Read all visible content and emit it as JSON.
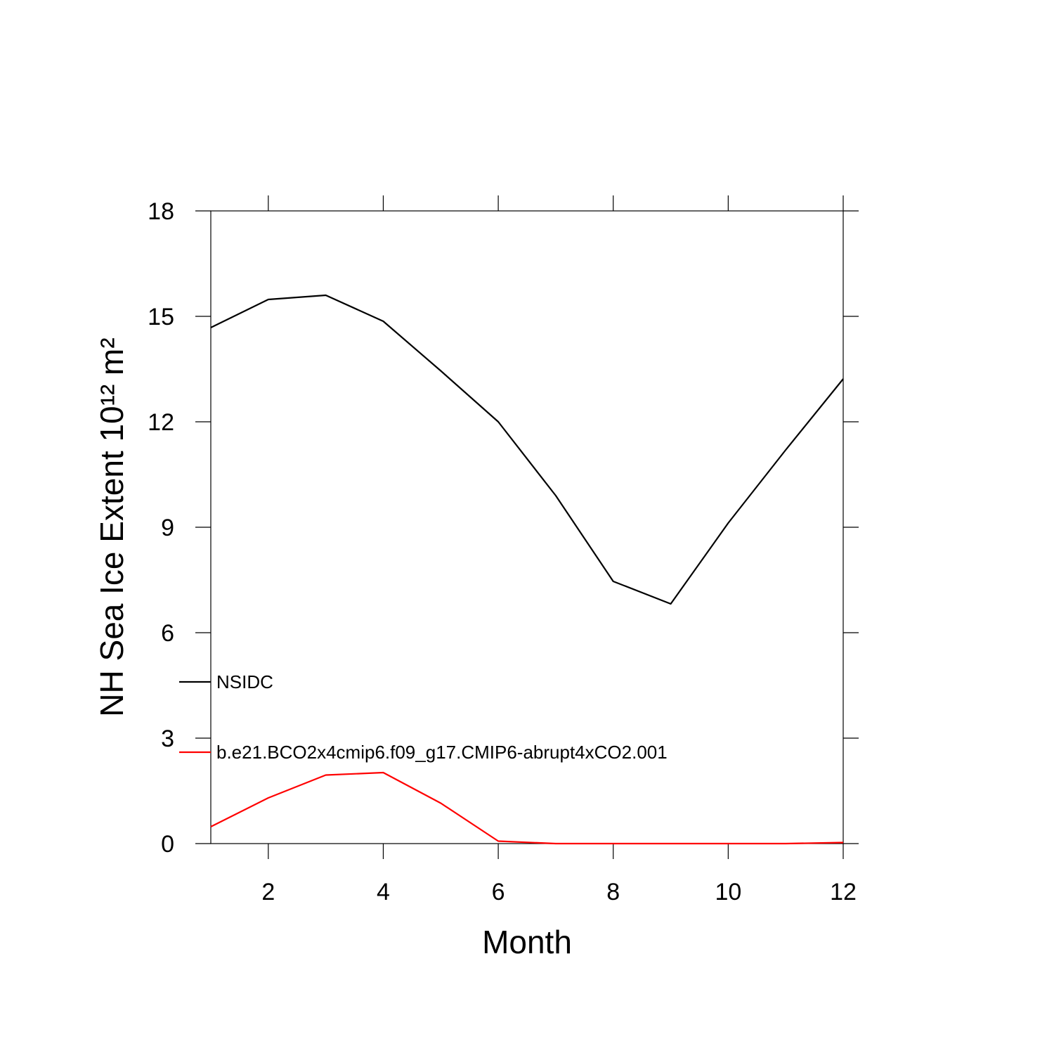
{
  "chart_data": {
    "type": "line",
    "xlabel": "Month",
    "ylabel": "NH Sea Ice Extent 10¹² m²",
    "x": [
      1,
      2,
      3,
      4,
      5,
      6,
      7,
      8,
      9,
      10,
      11,
      12
    ],
    "series": [
      {
        "name": "NSIDC",
        "color": "#000000",
        "values": [
          14.68,
          15.48,
          15.6,
          14.86,
          13.45,
          12.0,
          9.9,
          7.46,
          6.82,
          9.12,
          11.2,
          13.22
        ]
      },
      {
        "name": "b.e21.BCO2x4cmip6.f09_g17.CMIP6-abrupt4xCO2.001",
        "color": "#ff0000",
        "values": [
          0.48,
          1.3,
          1.95,
          2.02,
          1.15,
          0.07,
          0.0,
          0.0,
          0.0,
          0.0,
          0.0,
          0.03
        ]
      }
    ],
    "xlim": [
      1,
      12
    ],
    "xticks": [
      2,
      4,
      6,
      8,
      10,
      12
    ],
    "ylim": [
      0,
      18
    ],
    "yticks": [
      0,
      3,
      6,
      9,
      12,
      15,
      18
    ],
    "legend": "left"
  }
}
